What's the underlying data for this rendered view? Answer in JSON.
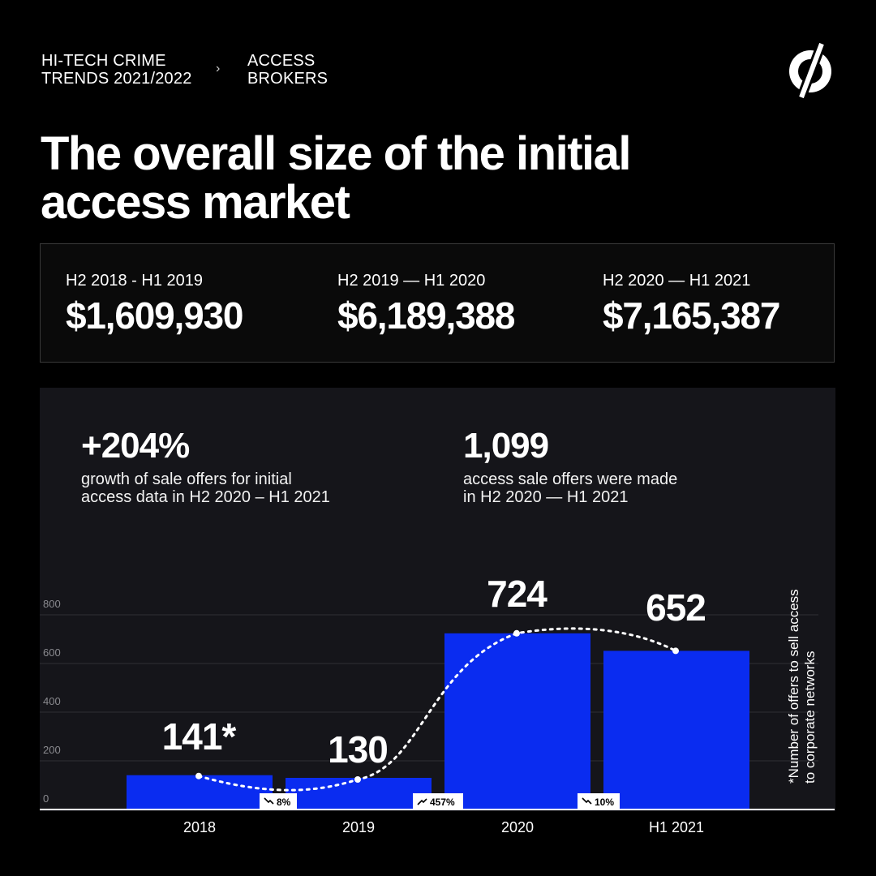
{
  "breadcrumb": {
    "section": [
      "HI-TECH CRIME",
      "TRENDS 2021/2022"
    ],
    "separator": "›",
    "page": [
      "ACCESS",
      "BROKERS"
    ]
  },
  "logo_icon": "null-slash-logo-icon",
  "title": [
    "The overall size of the initial",
    "access market"
  ],
  "stats": [
    {
      "period": "H2 2018 - H1 2019",
      "amount": "$1,609,930"
    },
    {
      "period": "H2 2019 — H1 2020",
      "amount": "$6,189,388"
    },
    {
      "period": "H2 2020 — H1 2021",
      "amount": "$7,165,387"
    }
  ],
  "kpis": [
    {
      "value": "+204%",
      "desc": [
        "growth of sale offers for initial",
        "access data in H2 2020 – H1 2021"
      ]
    },
    {
      "value": "1,099",
      "desc": [
        "access sale offers were made",
        "in H2 2020 — H1 2021"
      ]
    }
  ],
  "chart_data": {
    "type": "bar",
    "categories": [
      "2018",
      "2019",
      "2020",
      "H1 2021"
    ],
    "values": [
      141,
      130,
      724,
      652
    ],
    "data_labels": [
      "141*",
      "130",
      "724",
      "652"
    ],
    "ylim": [
      0,
      800
    ],
    "yticks": [
      0,
      200,
      400,
      600,
      800
    ],
    "grid": true,
    "trend_line": "dashed",
    "changes": [
      {
        "icon": "trend-down-icon",
        "label": "8%"
      },
      {
        "icon": "trend-up-icon",
        "label": "457%"
      },
      {
        "icon": "trend-down-icon",
        "label": "10%"
      }
    ],
    "footnote": [
      "*Number of offers to sell access",
      "to corporate networks"
    ],
    "colors": {
      "bar": "#0a2cf0",
      "grid": "#2e2e34",
      "axis": "#ffffff",
      "panel": "#15151a"
    }
  }
}
